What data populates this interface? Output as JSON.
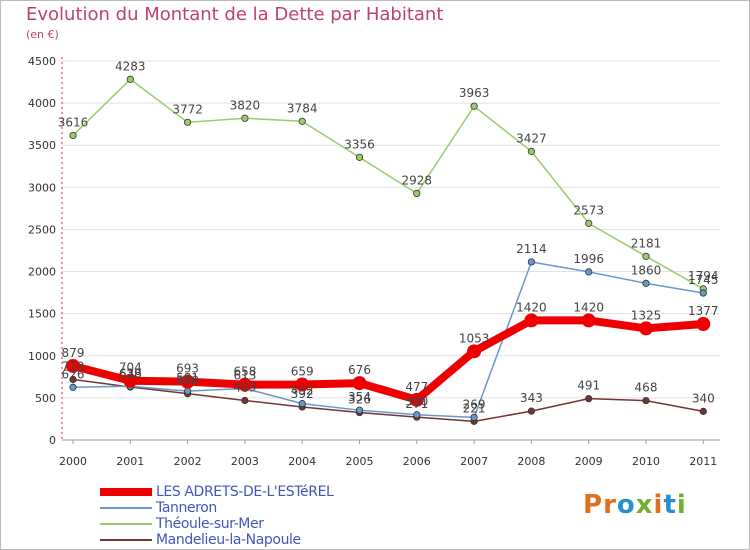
{
  "header": {
    "title": "Evolution du Montant de la Dette par Habitant",
    "unit": "(en €)"
  },
  "logo": {
    "text": "Proxiti",
    "colors": [
      "#e07020",
      "#e07020",
      "#2a8fd0",
      "#70b030",
      "#e07020",
      "#2a8fd0",
      "#70b030"
    ]
  },
  "chart_data": {
    "type": "line",
    "title": "Evolution du Montant de la Dette par Habitant",
    "ylabel": "(en €)",
    "x": [
      "2000",
      "2001",
      "2002",
      "2003",
      "2004",
      "2005",
      "2006",
      "2007",
      "2008",
      "2009",
      "2010",
      "2011"
    ],
    "ylim": [
      0,
      4500
    ],
    "yticks": [
      "0",
      "500",
      "1000",
      "1500",
      "2000",
      "2500",
      "3000",
      "3500",
      "4000",
      "4500"
    ],
    "legend_position": "bottom-left",
    "series": [
      {
        "name": "LES ADRETS-DE-L'ESTéREL",
        "color": "#ee0000",
        "width": 8,
        "values": [
          879,
          704,
          693,
          658,
          659,
          676,
          477,
          1053,
          1420,
          1420,
          1325,
          1377
        ],
        "labels": [
          "879",
          "704",
          "693",
          "658",
          "659",
          "676",
          "477",
          "1053",
          "1420",
          "1420",
          "1325",
          "1377"
        ]
      },
      {
        "name": "Tanneron",
        "color": "#6699cc",
        "width": 1.5,
        "values": [
          626,
          638,
          581,
          613,
          432,
          354,
          300,
          269,
          2114,
          1996,
          1860,
          1745
        ],
        "labels": [
          "626",
          "638",
          "581",
          "613",
          "432",
          "354",
          "300",
          "269",
          "2114",
          "1996",
          "1860",
          "1745"
        ]
      },
      {
        "name": "Théoule-sur-Mer",
        "color": "#99cc66",
        "width": 1.5,
        "values": [
          3616,
          4283,
          3772,
          3820,
          3784,
          3356,
          2928,
          3963,
          3427,
          2573,
          2181,
          1794
        ],
        "labels": [
          "3616",
          "4283",
          "3772",
          "3820",
          "3784",
          "3356",
          "2928",
          "3963",
          "3427",
          "2573",
          "2181",
          "1794"
        ]
      },
      {
        "name": "Mandelieu-la-Napoule",
        "color": "#773333",
        "width": 1.5,
        "values": [
          719,
          629,
          550,
          469,
          392,
          326,
          271,
          221,
          343,
          491,
          468,
          340
        ],
        "labels": [
          "719",
          "629",
          "550",
          "469",
          "392",
          "326",
          "271",
          "221",
          "343",
          "491",
          "468",
          "340"
        ]
      }
    ]
  }
}
